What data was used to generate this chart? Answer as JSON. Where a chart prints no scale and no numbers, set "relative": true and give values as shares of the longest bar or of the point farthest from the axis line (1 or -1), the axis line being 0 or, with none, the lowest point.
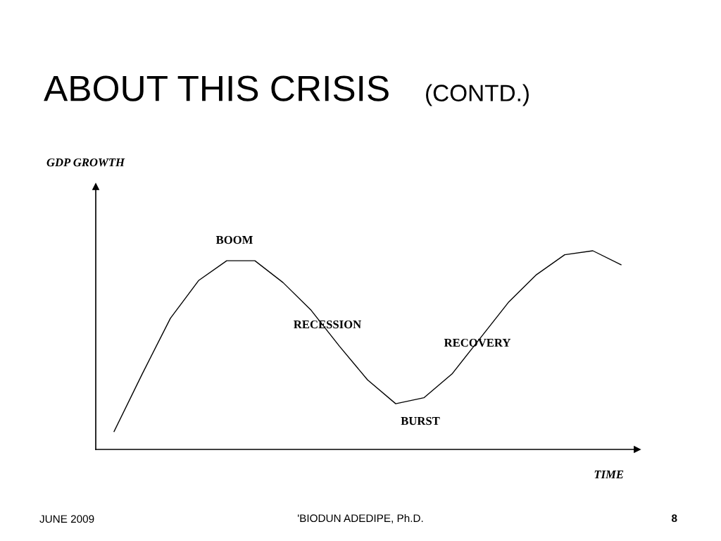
{
  "chart_data": {
    "type": "line",
    "relative": true,
    "title": "ABOUT THIS CRISIS",
    "subtitle": "(CONTD.)",
    "xlabel": "TIME",
    "categories": [
      null,
      null,
      null,
      null,
      null,
      null,
      null,
      null,
      null,
      null,
      null,
      null,
      null,
      null,
      null,
      null,
      null,
      null,
      null
    ],
    "series": [
      {
        "color": "#000000",
        "values": [
          0.09,
          0.38,
          0.66,
          0.85,
          0.95,
          0.95,
          0.84,
          0.7,
          0.52,
          0.35,
          0.23,
          0.26,
          0.38,
          0.56,
          0.74,
          0.88,
          0.98,
          1.0,
          0.93
        ]
      }
    ],
    "annotations": [
      "GDP GROWTH",
      "BOOM",
      "RECESSION",
      "RECOVERY",
      "BURST",
      "JUNE 2009",
      "'BIODUN ADEDIPE, Ph.D.",
      "8"
    ],
    "grid": false,
    "legend": false,
    "marker": "none",
    "line_style": "solid"
  }
}
